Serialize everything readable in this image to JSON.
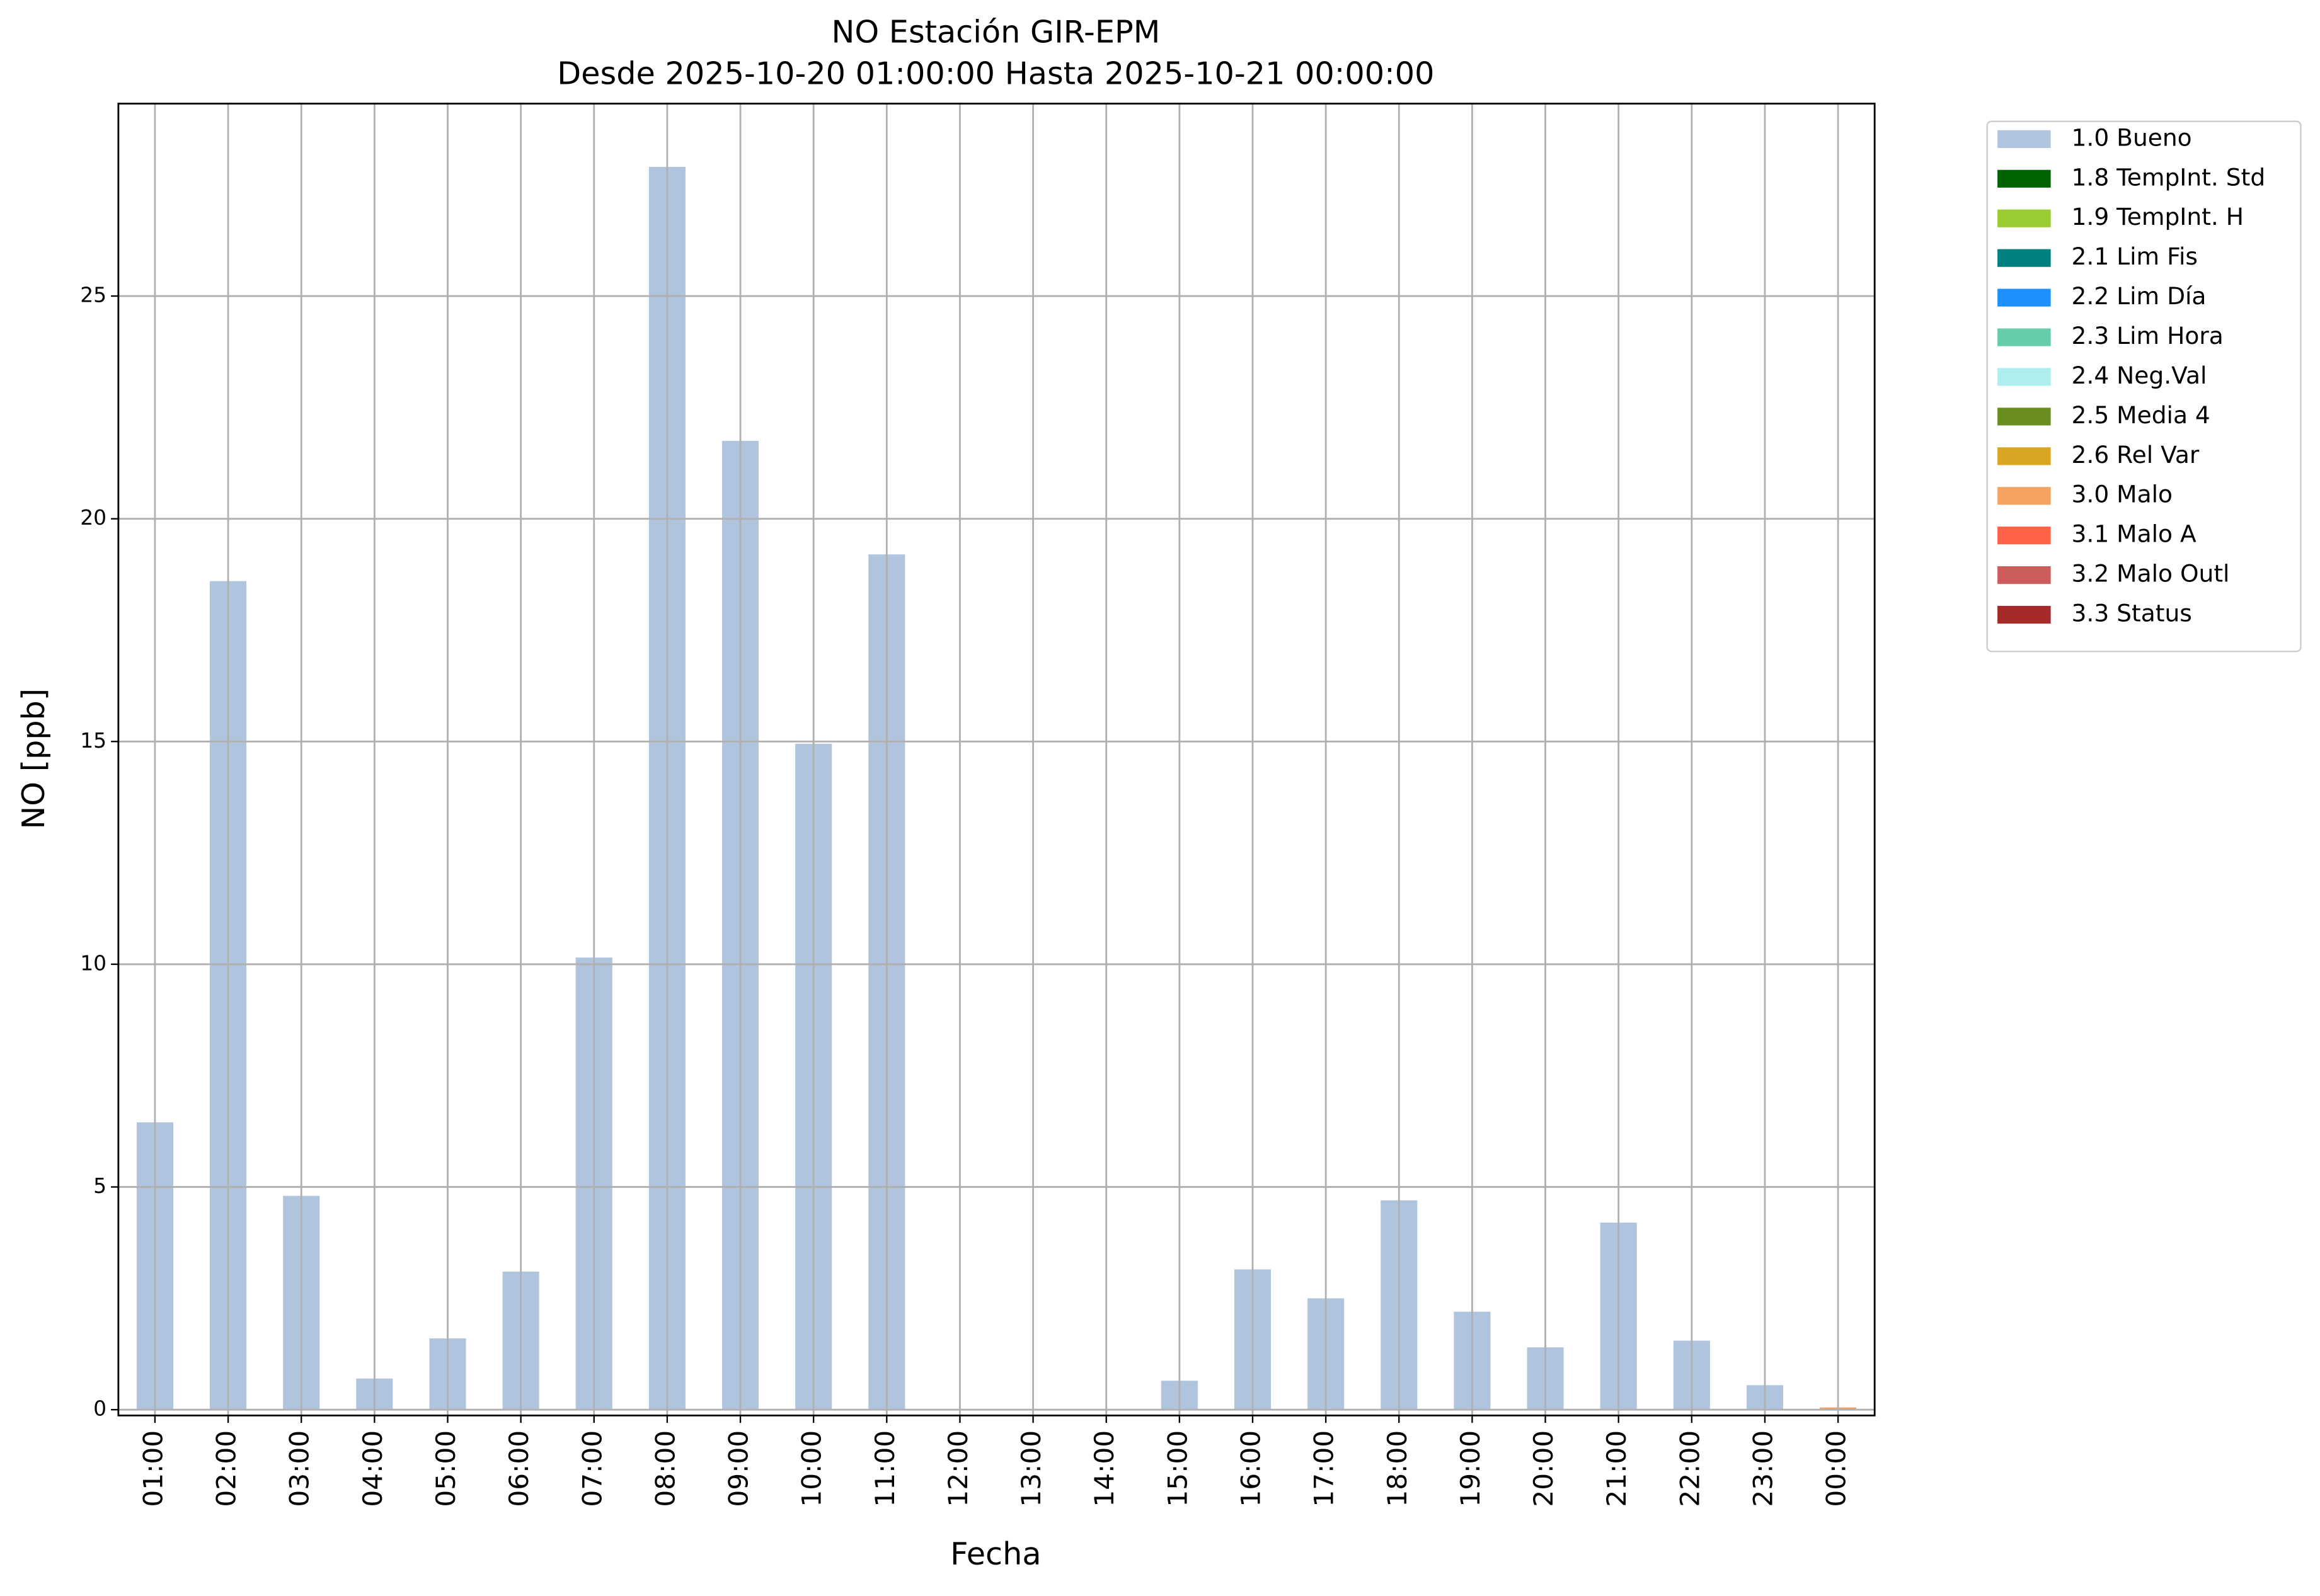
{
  "chart_data": {
    "type": "bar",
    "stacked": true,
    "title": "NO Estación GIR-EPM",
    "subtitle": "Desde 2025-10-20 01:00:00 Hasta 2025-10-21 00:00:00",
    "xlabel": "Fecha",
    "ylabel": "NO [ppb]",
    "categories": [
      "01:00",
      "02:00",
      "03:00",
      "04:00",
      "05:00",
      "06:00",
      "07:00",
      "08:00",
      "09:00",
      "10:00",
      "11:00",
      "12:00",
      "13:00",
      "14:00",
      "15:00",
      "16:00",
      "17:00",
      "18:00",
      "19:00",
      "20:00",
      "21:00",
      "22:00",
      "23:00",
      "00:00"
    ],
    "series": [
      {
        "name": "1.0 Bueno",
        "color": "#b0c4de",
        "values": [
          6.45,
          18.6,
          4.8,
          0.7,
          1.6,
          3.1,
          10.15,
          27.9,
          21.75,
          14.95,
          19.2,
          null,
          null,
          null,
          0.65,
          3.15,
          2.5,
          4.7,
          2.2,
          1.4,
          4.2,
          1.55,
          0.55,
          null
        ]
      },
      {
        "name": "1.8 TempInt. Std",
        "color": "#006400",
        "values": [
          null,
          null,
          null,
          null,
          null,
          null,
          null,
          null,
          null,
          null,
          null,
          null,
          null,
          null,
          null,
          null,
          null,
          null,
          null,
          null,
          null,
          null,
          null,
          null
        ]
      },
      {
        "name": "1.9 TempInt. H",
        "color": "#9acd32",
        "values": [
          null,
          null,
          null,
          null,
          null,
          null,
          null,
          null,
          null,
          null,
          null,
          null,
          null,
          null,
          null,
          null,
          null,
          null,
          null,
          null,
          null,
          null,
          null,
          null
        ]
      },
      {
        "name": "2.1 Lim Fis",
        "color": "#008080",
        "values": [
          null,
          null,
          null,
          null,
          null,
          null,
          null,
          null,
          null,
          null,
          null,
          null,
          null,
          null,
          null,
          null,
          null,
          null,
          null,
          null,
          null,
          null,
          null,
          null
        ]
      },
      {
        "name": "2.2 Lim Día",
        "color": "#1e90ff",
        "values": [
          null,
          null,
          null,
          null,
          null,
          null,
          null,
          null,
          null,
          null,
          null,
          null,
          null,
          null,
          null,
          null,
          null,
          null,
          null,
          null,
          null,
          null,
          null,
          null
        ]
      },
      {
        "name": "2.3 Lim Hora",
        "color": "#66cdaa",
        "values": [
          null,
          null,
          null,
          null,
          null,
          null,
          null,
          null,
          null,
          null,
          null,
          null,
          null,
          null,
          null,
          null,
          null,
          null,
          null,
          null,
          null,
          null,
          null,
          null
        ]
      },
      {
        "name": "2.4 Neg.Val",
        "color": "#afeeee",
        "values": [
          null,
          null,
          null,
          null,
          null,
          null,
          null,
          null,
          null,
          null,
          null,
          null,
          null,
          null,
          null,
          null,
          null,
          null,
          null,
          null,
          null,
          null,
          null,
          null
        ]
      },
      {
        "name": "2.5 Media 4",
        "color": "#6b8e23",
        "values": [
          null,
          null,
          null,
          null,
          null,
          null,
          null,
          null,
          null,
          null,
          null,
          null,
          null,
          null,
          null,
          null,
          null,
          null,
          null,
          null,
          null,
          null,
          null,
          null
        ]
      },
      {
        "name": "2.6 Rel Var",
        "color": "#daa520",
        "values": [
          null,
          null,
          null,
          null,
          null,
          null,
          null,
          null,
          null,
          null,
          null,
          null,
          null,
          null,
          null,
          null,
          null,
          null,
          null,
          null,
          null,
          null,
          null,
          null
        ]
      },
      {
        "name": "3.0 Malo",
        "color": "#f4a460",
        "values": [
          null,
          null,
          null,
          null,
          null,
          null,
          null,
          null,
          null,
          null,
          null,
          null,
          null,
          null,
          null,
          null,
          null,
          null,
          null,
          null,
          null,
          null,
          null,
          0.05
        ]
      },
      {
        "name": "3.1 Malo A",
        "color": "#ff6347",
        "values": [
          null,
          null,
          null,
          null,
          null,
          null,
          null,
          null,
          null,
          null,
          null,
          null,
          null,
          null,
          null,
          null,
          null,
          null,
          null,
          null,
          null,
          null,
          null,
          null
        ]
      },
      {
        "name": "3.2 Malo Outl",
        "color": "#cd5c5c",
        "values": [
          null,
          null,
          null,
          null,
          null,
          null,
          null,
          null,
          null,
          null,
          null,
          null,
          null,
          null,
          null,
          null,
          null,
          null,
          null,
          null,
          null,
          null,
          null,
          null
        ]
      },
      {
        "name": "3.3 Status",
        "color": "#a52a2a",
        "values": [
          null,
          null,
          null,
          null,
          null,
          null,
          null,
          null,
          null,
          null,
          null,
          null,
          null,
          null,
          null,
          null,
          null,
          null,
          null,
          null,
          null,
          null,
          null,
          null
        ]
      }
    ],
    "ylim": [
      -0.13,
      29.32
    ],
    "yticks": [
      0,
      5,
      10,
      15,
      20,
      25
    ],
    "grid": true,
    "legend": "outside-right"
  }
}
